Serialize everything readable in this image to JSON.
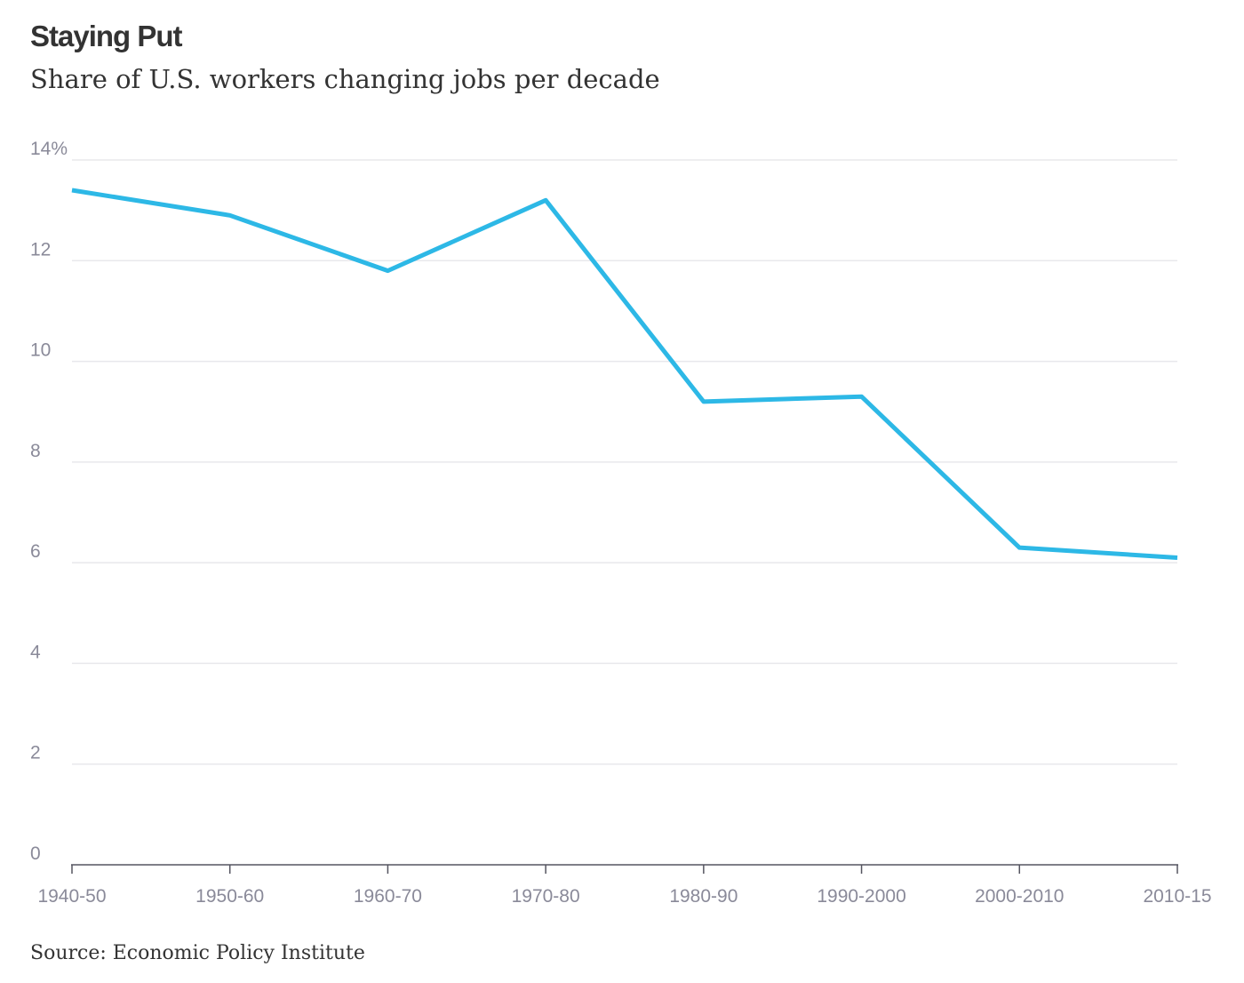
{
  "chart_data": {
    "type": "line",
    "title": "Staying Put",
    "subtitle": "Share of U.S. workers changing jobs per decade",
    "source": "Source: Economic Policy Institute",
    "categories": [
      "1940-50",
      "1950-60",
      "1960-70",
      "1970-80",
      "1980-90",
      "1990-2000",
      "2000-2010",
      "2010-15"
    ],
    "series": [
      {
        "values": [
          13.4,
          12.9,
          11.8,
          13.2,
          9.2,
          9.3,
          6.3,
          6.1
        ]
      }
    ],
    "yticks": [
      0,
      2,
      4,
      6,
      8,
      10,
      12,
      14
    ],
    "ytick_labels": [
      "0",
      "2",
      "4",
      "6",
      "8",
      "10",
      "12",
      "14%"
    ],
    "ylim": [
      0,
      14
    ],
    "grid": true,
    "line_color": "#2db8e6",
    "grid_color": "#e8e8ec",
    "axis_color": "#555560"
  }
}
